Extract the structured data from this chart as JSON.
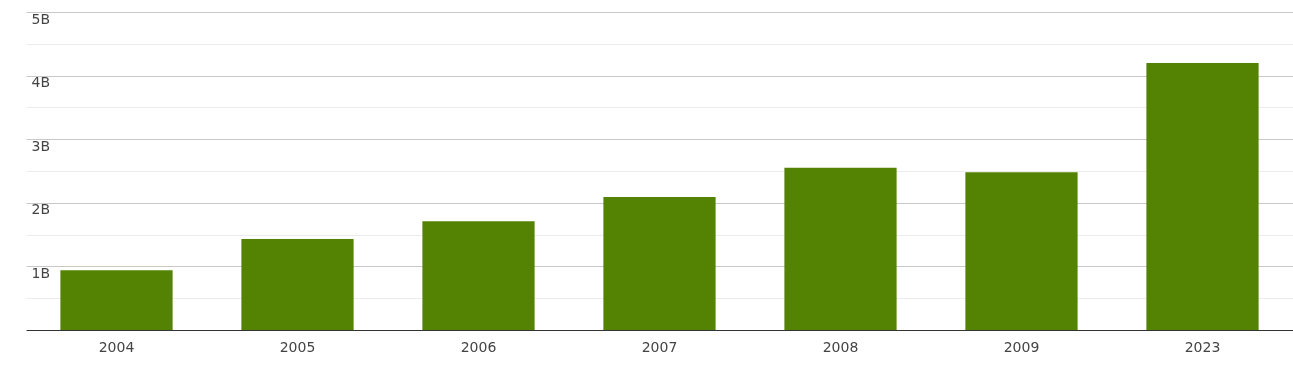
{
  "chart_data": {
    "type": "bar",
    "categories": [
      "2004",
      "2005",
      "2006",
      "2007",
      "2008",
      "2009",
      "2023"
    ],
    "values": [
      0.94,
      1.43,
      1.71,
      2.09,
      2.55,
      2.48,
      4.2
    ],
    "color": "#548202",
    "ylim": [
      0,
      5
    ],
    "yticks": [
      {
        "value": 0.5,
        "label": null
      },
      {
        "value": 1,
        "label": "1B"
      },
      {
        "value": 1.5,
        "label": null
      },
      {
        "value": 2,
        "label": "2B"
      },
      {
        "value": 2.5,
        "label": null
      },
      {
        "value": 3,
        "label": "3B"
      },
      {
        "value": 3.5,
        "label": null
      },
      {
        "value": 4,
        "label": "4B"
      },
      {
        "value": 4.5,
        "label": null
      },
      {
        "value": 5,
        "label": "5B"
      }
    ],
    "grid": true
  }
}
